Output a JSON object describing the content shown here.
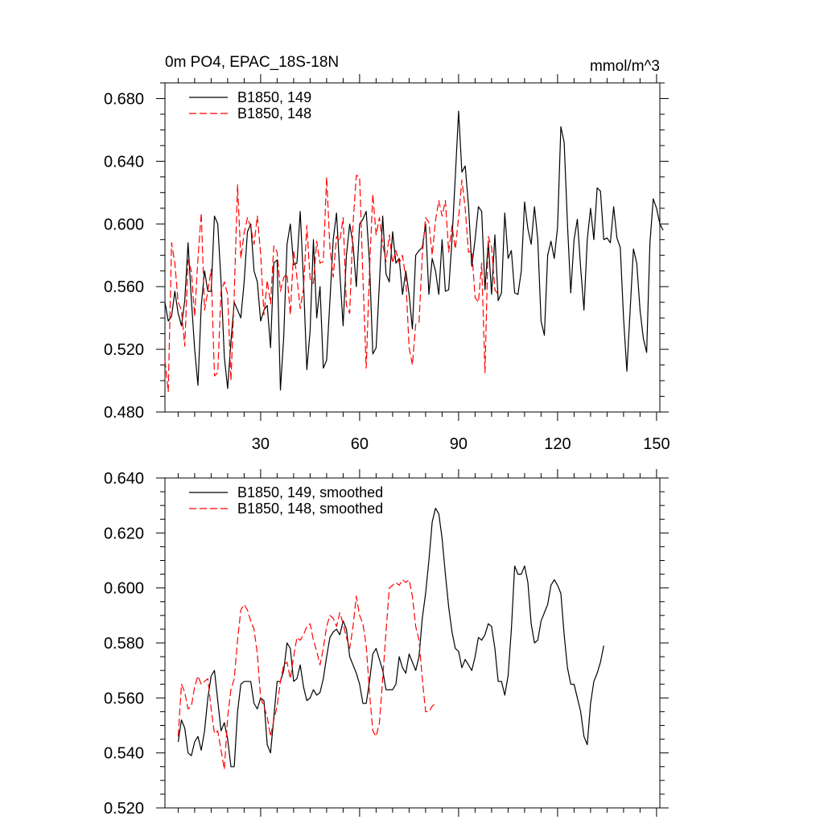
{
  "chart_data": [
    {
      "type": "line",
      "title": "0m PO4, EPAC_18S-18N",
      "units": "mmol/m^3",
      "xlabel": "",
      "ylabel": "",
      "xlim": [
        1,
        151
      ],
      "ylim": [
        0.48,
        0.69
      ],
      "xticks": [
        30,
        60,
        90,
        120,
        150
      ],
      "yticks": [
        0.48,
        0.52,
        0.56,
        0.6,
        0.64,
        0.68
      ],
      "ytick_labels": [
        "0.480",
        "0.520",
        "0.560",
        "0.600",
        "0.640",
        "0.680"
      ],
      "legend_position": "top-left",
      "series": [
        {
          "name": "B1850, 149",
          "color": "#000000",
          "dash": "solid",
          "x_start": 1,
          "values": [
            0.55,
            0.538,
            0.541,
            0.557,
            0.543,
            0.535,
            0.551,
            0.588,
            0.552,
            0.52,
            0.497,
            0.548,
            0.57,
            0.557,
            0.557,
            0.605,
            0.6,
            0.563,
            0.515,
            0.495,
            0.525,
            0.55,
            0.545,
            0.54,
            0.563,
            0.595,
            0.6,
            0.57,
            0.563,
            0.538,
            0.545,
            0.548,
            0.521,
            0.575,
            0.577,
            0.494,
            0.528,
            0.587,
            0.6,
            0.574,
            0.575,
            0.608,
            0.563,
            0.507,
            0.532,
            0.59,
            0.54,
            0.56,
            0.508,
            0.513,
            0.551,
            0.59,
            0.607,
            0.569,
            0.535,
            0.58,
            0.6,
            0.587,
            0.56,
            0.6,
            0.603,
            0.608,
            0.575,
            0.517,
            0.521,
            0.562,
            0.605,
            0.568,
            0.563,
            0.595,
            0.575,
            0.578,
            0.555,
            0.57,
            0.555,
            0.533,
            0.58,
            0.583,
            0.585,
            0.6,
            0.555,
            0.578,
            0.57,
            0.555,
            0.59,
            0.557,
            0.558,
            0.59,
            0.63,
            0.672,
            0.633,
            0.637,
            0.612,
            0.573,
            0.59,
            0.611,
            0.608,
            0.558,
            0.589,
            0.555,
            0.593,
            0.551,
            0.556,
            0.607,
            0.578,
            0.583,
            0.556,
            0.555,
            0.57,
            0.614,
            0.597,
            0.587,
            0.611,
            0.59,
            0.538,
            0.529,
            0.58,
            0.589,
            0.578,
            0.598,
            0.662,
            0.652,
            0.6,
            0.556,
            0.59,
            0.603,
            0.572,
            0.545,
            0.59,
            0.61,
            0.59,
            0.623,
            0.621,
            0.59,
            0.591,
            0.588,
            0.611,
            0.591,
            0.585,
            0.54,
            0.506,
            0.545,
            0.584,
            0.575,
            0.545,
            0.527,
            0.518,
            0.588,
            0.616,
            0.61,
            0.6,
            0.596
          ]
        },
        {
          "name": "B1850, 148",
          "color": "#ff0000",
          "dash": "dashed",
          "x_start": 1,
          "values": [
            0.513,
            0.493,
            0.588,
            0.575,
            0.55,
            0.545,
            0.522,
            0.577,
            0.57,
            0.541,
            0.578,
            0.607,
            0.545,
            0.557,
            0.571,
            0.503,
            0.505,
            0.557,
            0.563,
            0.555,
            0.5,
            0.555,
            0.625,
            0.578,
            0.594,
            0.604,
            0.598,
            0.587,
            0.605,
            0.581,
            0.542,
            0.564,
            0.549,
            0.586,
            0.582,
            0.557,
            0.566,
            0.568,
            0.542,
            0.583,
            0.566,
            0.546,
            0.559,
            0.599,
            0.565,
            0.562,
            0.589,
            0.575,
            0.576,
            0.63,
            0.585,
            0.566,
            0.592,
            0.589,
            0.604,
            0.548,
            0.543,
            0.6,
            0.631,
            0.63,
            0.566,
            0.508,
            0.57,
            0.619,
            0.593,
            0.604,
            0.587,
            0.576,
            0.593,
            0.575,
            0.583,
            0.575,
            0.58,
            0.565,
            0.521,
            0.51,
            0.536,
            0.537,
            0.58,
            0.604,
            0.601,
            0.58,
            0.602,
            0.615,
            0.605,
            0.615,
            0.582,
            0.599,
            0.584,
            0.604,
            0.628,
            0.61,
            0.582,
            0.583,
            0.553,
            0.55,
            0.575,
            0.505,
            0.592,
            0.585,
            0.558,
            0.555
          ]
        }
      ]
    },
    {
      "type": "line",
      "title": "",
      "xlabel": "",
      "ylabel": "",
      "xlim": [
        1,
        151
      ],
      "ylim": [
        0.52,
        0.64
      ],
      "xticks": [
        30,
        60,
        90,
        120,
        150
      ],
      "yticks": [
        0.52,
        0.54,
        0.56,
        0.58,
        0.6,
        0.62,
        0.64
      ],
      "ytick_labels": [
        "0.520",
        "0.540",
        "0.560",
        "0.580",
        "0.600",
        "0.620",
        "0.640"
      ],
      "legend_position": "top-left",
      "series": [
        {
          "name": "B1850, 149, smoothed",
          "color": "#000000",
          "dash": "solid",
          "x_start": 5,
          "values": [
            0.544,
            0.552,
            0.549,
            0.54,
            0.539,
            0.544,
            0.546,
            0.541,
            0.548,
            0.56,
            0.568,
            0.57,
            0.559,
            0.548,
            0.551,
            0.545,
            0.535,
            0.535,
            0.555,
            0.565,
            0.566,
            0.566,
            0.566,
            0.558,
            0.556,
            0.56,
            0.559,
            0.543,
            0.54,
            0.553,
            0.566,
            0.566,
            0.57,
            0.58,
            0.578,
            0.566,
            0.567,
            0.572,
            0.564,
            0.559,
            0.56,
            0.563,
            0.561,
            0.562,
            0.567,
            0.575,
            0.582,
            0.584,
            0.585,
            0.583,
            0.588,
            0.585,
            0.575,
            0.572,
            0.569,
            0.565,
            0.558,
            0.558,
            0.566,
            0.576,
            0.578,
            0.574,
            0.57,
            0.563,
            0.563,
            0.563,
            0.565,
            0.575,
            0.571,
            0.569,
            0.576,
            0.573,
            0.57,
            0.575,
            0.589,
            0.598,
            0.61,
            0.624,
            0.629,
            0.627,
            0.618,
            0.605,
            0.593,
            0.584,
            0.578,
            0.577,
            0.571,
            0.574,
            0.572,
            0.57,
            0.575,
            0.582,
            0.581,
            0.583,
            0.587,
            0.586,
            0.578,
            0.566,
            0.566,
            0.561,
            0.568,
            0.585,
            0.608,
            0.605,
            0.605,
            0.608,
            0.602,
            0.587,
            0.58,
            0.581,
            0.588,
            0.591,
            0.594,
            0.601,
            0.603,
            0.601,
            0.598,
            0.583,
            0.571,
            0.565,
            0.565,
            0.56,
            0.555,
            0.546,
            0.543,
            0.558,
            0.566,
            0.569,
            0.573,
            0.579
          ]
        },
        {
          "name": "B1850, 148, smoothed",
          "color": "#ff0000",
          "dash": "dashed",
          "x_start": 5,
          "values": [
            0.546,
            0.565,
            0.562,
            0.556,
            0.557,
            0.564,
            0.568,
            0.565,
            0.566,
            0.567,
            0.556,
            0.547,
            0.548,
            0.541,
            0.534,
            0.553,
            0.563,
            0.567,
            0.581,
            0.592,
            0.594,
            0.592,
            0.588,
            0.585,
            0.576,
            0.56,
            0.557,
            0.553,
            0.546,
            0.552,
            0.557,
            0.566,
            0.572,
            0.573,
            0.567,
            0.575,
            0.582,
            0.581,
            0.583,
            0.586,
            0.587,
            0.581,
            0.577,
            0.572,
            0.578,
            0.586,
            0.59,
            0.589,
            0.586,
            0.591,
            0.587,
            0.582,
            0.578,
            0.586,
            0.597,
            0.59,
            0.587,
            0.579,
            0.562,
            0.548,
            0.546,
            0.551,
            0.567,
            0.584,
            0.6,
            0.601,
            0.602,
            0.601,
            0.603,
            0.602,
            0.603,
            0.597,
            0.586,
            0.581,
            0.567,
            0.555,
            0.555,
            0.557,
            0.558
          ]
        }
      ]
    }
  ]
}
